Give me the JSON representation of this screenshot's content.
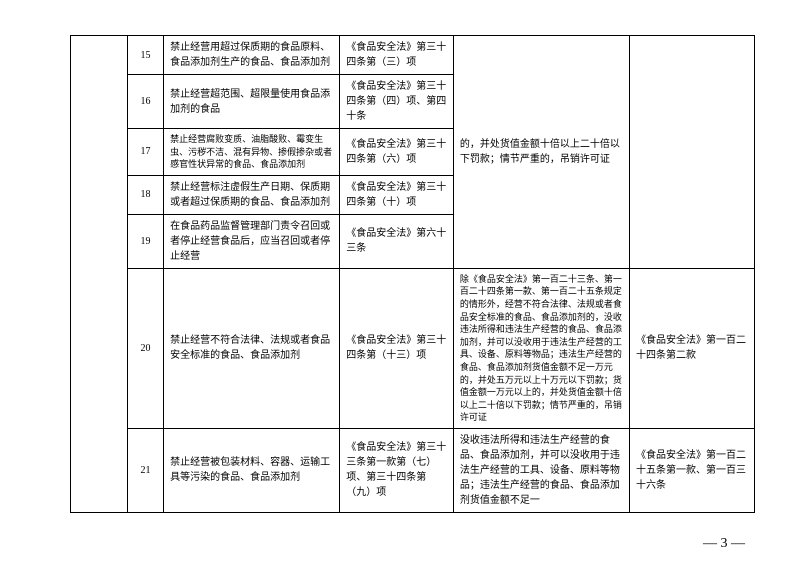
{
  "rows": [
    {
      "num": "15",
      "desc": "禁止经营用超过保质期的食品原料、食品添加剂生产的食品、食品添加剂",
      "law": "《食品安全法》第三十四条第（三）项",
      "detail": "的，并处货值金额十倍以上二十倍以下罚款；情节严重的，吊销许可证",
      "ref": ""
    },
    {
      "num": "16",
      "desc": "禁止经营超范围、超限量使用食品添加剂的食品",
      "law": "《食品安全法》第三十四条第（四）项、第四十条"
    },
    {
      "num": "17",
      "desc": "禁止经营腐败变质、油脂酸败、霉变生虫、污秽不洁、混有异物、掺假掺杂或者感官性状异常的食品、食品添加剂",
      "law": "《食品安全法》第三十四条第（六）项"
    },
    {
      "num": "18",
      "desc": "禁止经营标注虚假生产日期、保质期或者超过保质期的食品、食品添加剂",
      "law": "《食品安全法》第三十四条第（十）项"
    },
    {
      "num": "19",
      "desc": "在食品药品监督管理部门责令召回或者停止经营食品后，应当召回或者停止经营",
      "law": "《食品安全法》第六十三条"
    },
    {
      "num": "20",
      "desc": "禁止经营不符合法律、法规或者食品安全标准的食品、食品添加剂",
      "law": "《食品安全法》第三十四条第（十三）项",
      "detail": "除《食品安全法》第一百二十三条、第一百二十四条第一款、第一百二十五条规定的情形外，经营不符合法律、法规或者食品安全标准的食品、食品添加剂的，没收违法所得和违法生产经营的食品、食品添加剂，并可以没收用于违法生产经营的工具、设备、原料等物品；违法生产经营的食品、食品添加剂货值金额不足一万元的，并处五万元以上十万元以下罚款；货值金额一万元以上的，并处货值金额十倍以上二十倍以下罚款；情节严重的，吊销许可证",
      "ref": "《食品安全法》第一百二十四条第二款"
    },
    {
      "num": "21",
      "desc": "禁止经营被包装材料、容器、运输工具等污染的食品、食品添加剂",
      "law": "《食品安全法》第三十三条第一款第（七）项、第三十四条第（九）项",
      "detail": "没收违法所得和违法生产经营的食品、食品添加剂，并可以没收用于违法生产经营的工具、设备、原料等物品；违法生产经营的食品、食品添加剂货值金额不足一",
      "ref": "《食品安全法》第一百二十五条第一款、第一百三十六条"
    }
  ],
  "pagenum": "— 3 —"
}
